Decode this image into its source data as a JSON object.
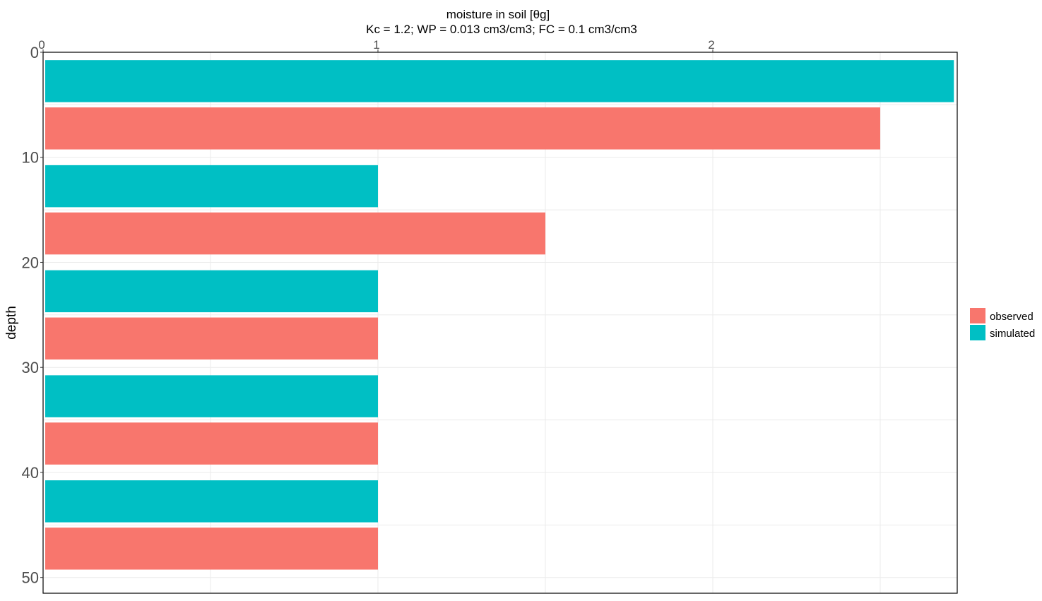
{
  "chart_data": {
    "type": "bar",
    "orientation": "horizontal",
    "title": "moisture in soil [θg]",
    "subtitle": "Kc = 1.2; WP = 0.013 cm3/cm3; FC = 0.1 cm3/cm3",
    "xlabel": "",
    "ylabel": "depth",
    "x_axis_position": "top",
    "y_reversed": true,
    "xlim": [
      0,
      2.73
    ],
    "ylim": [
      0,
      51.5
    ],
    "x_ticks": [
      0,
      1,
      2
    ],
    "y_ticks": [
      0,
      10,
      20,
      30,
      40,
      50
    ],
    "grid": true,
    "legend_position": "right",
    "series": [
      {
        "name": "observed",
        "color": "#F8766D",
        "bars": [
          {
            "depth_center": 7.25,
            "value": 2.5
          },
          {
            "depth_center": 17.25,
            "value": 1.5
          },
          {
            "depth_center": 27.25,
            "value": 1
          },
          {
            "depth_center": 37.25,
            "value": 1
          },
          {
            "depth_center": 47.25,
            "value": 1
          }
        ]
      },
      {
        "name": "simulated",
        "color": "#00BFC4",
        "bars": [
          {
            "depth_center": 2.75,
            "value": 2.72
          },
          {
            "depth_center": 12.75,
            "value": 1
          },
          {
            "depth_center": 22.75,
            "value": 1
          },
          {
            "depth_center": 32.75,
            "value": 1
          },
          {
            "depth_center": 42.75,
            "value": 1
          }
        ]
      }
    ],
    "bar_thickness": 4
  }
}
